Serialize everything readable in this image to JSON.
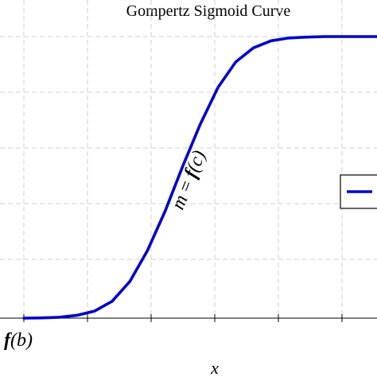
{
  "chart_data": {
    "type": "line",
    "title": "Gompertz Sigmoid Curve",
    "xlabel": "x",
    "ylabel": "",
    "xlim": [
      0,
      10
    ],
    "ylim": [
      0,
      1.15
    ],
    "grid": true,
    "legend_placement": "right",
    "colors": {
      "curve": "#0000cc",
      "grid": "#cfcfcf"
    },
    "tick_labels": {
      "x_start": {
        "prefix": "f",
        "arg": "(b)"
      }
    },
    "annotation": {
      "lhs": "m",
      "eq": " = ",
      "func": "f",
      "arg": "(c)",
      "rotation_deg": -68
    },
    "series": [
      {
        "x": [
          0.0,
          0.5,
          1.0,
          1.5,
          2.0,
          2.5,
          3.0,
          3.5,
          4.0,
          4.5,
          5.0,
          5.5,
          6.0,
          6.5,
          7.0,
          7.5,
          8.0,
          8.5,
          9.0,
          9.5,
          10.0
        ],
        "values": [
          0.0,
          0.001,
          0.003,
          0.01,
          0.025,
          0.06,
          0.13,
          0.24,
          0.38,
          0.54,
          0.69,
          0.82,
          0.91,
          0.96,
          0.985,
          0.995,
          0.998,
          1.0,
          1.0,
          1.0,
          1.0
        ]
      }
    ]
  }
}
